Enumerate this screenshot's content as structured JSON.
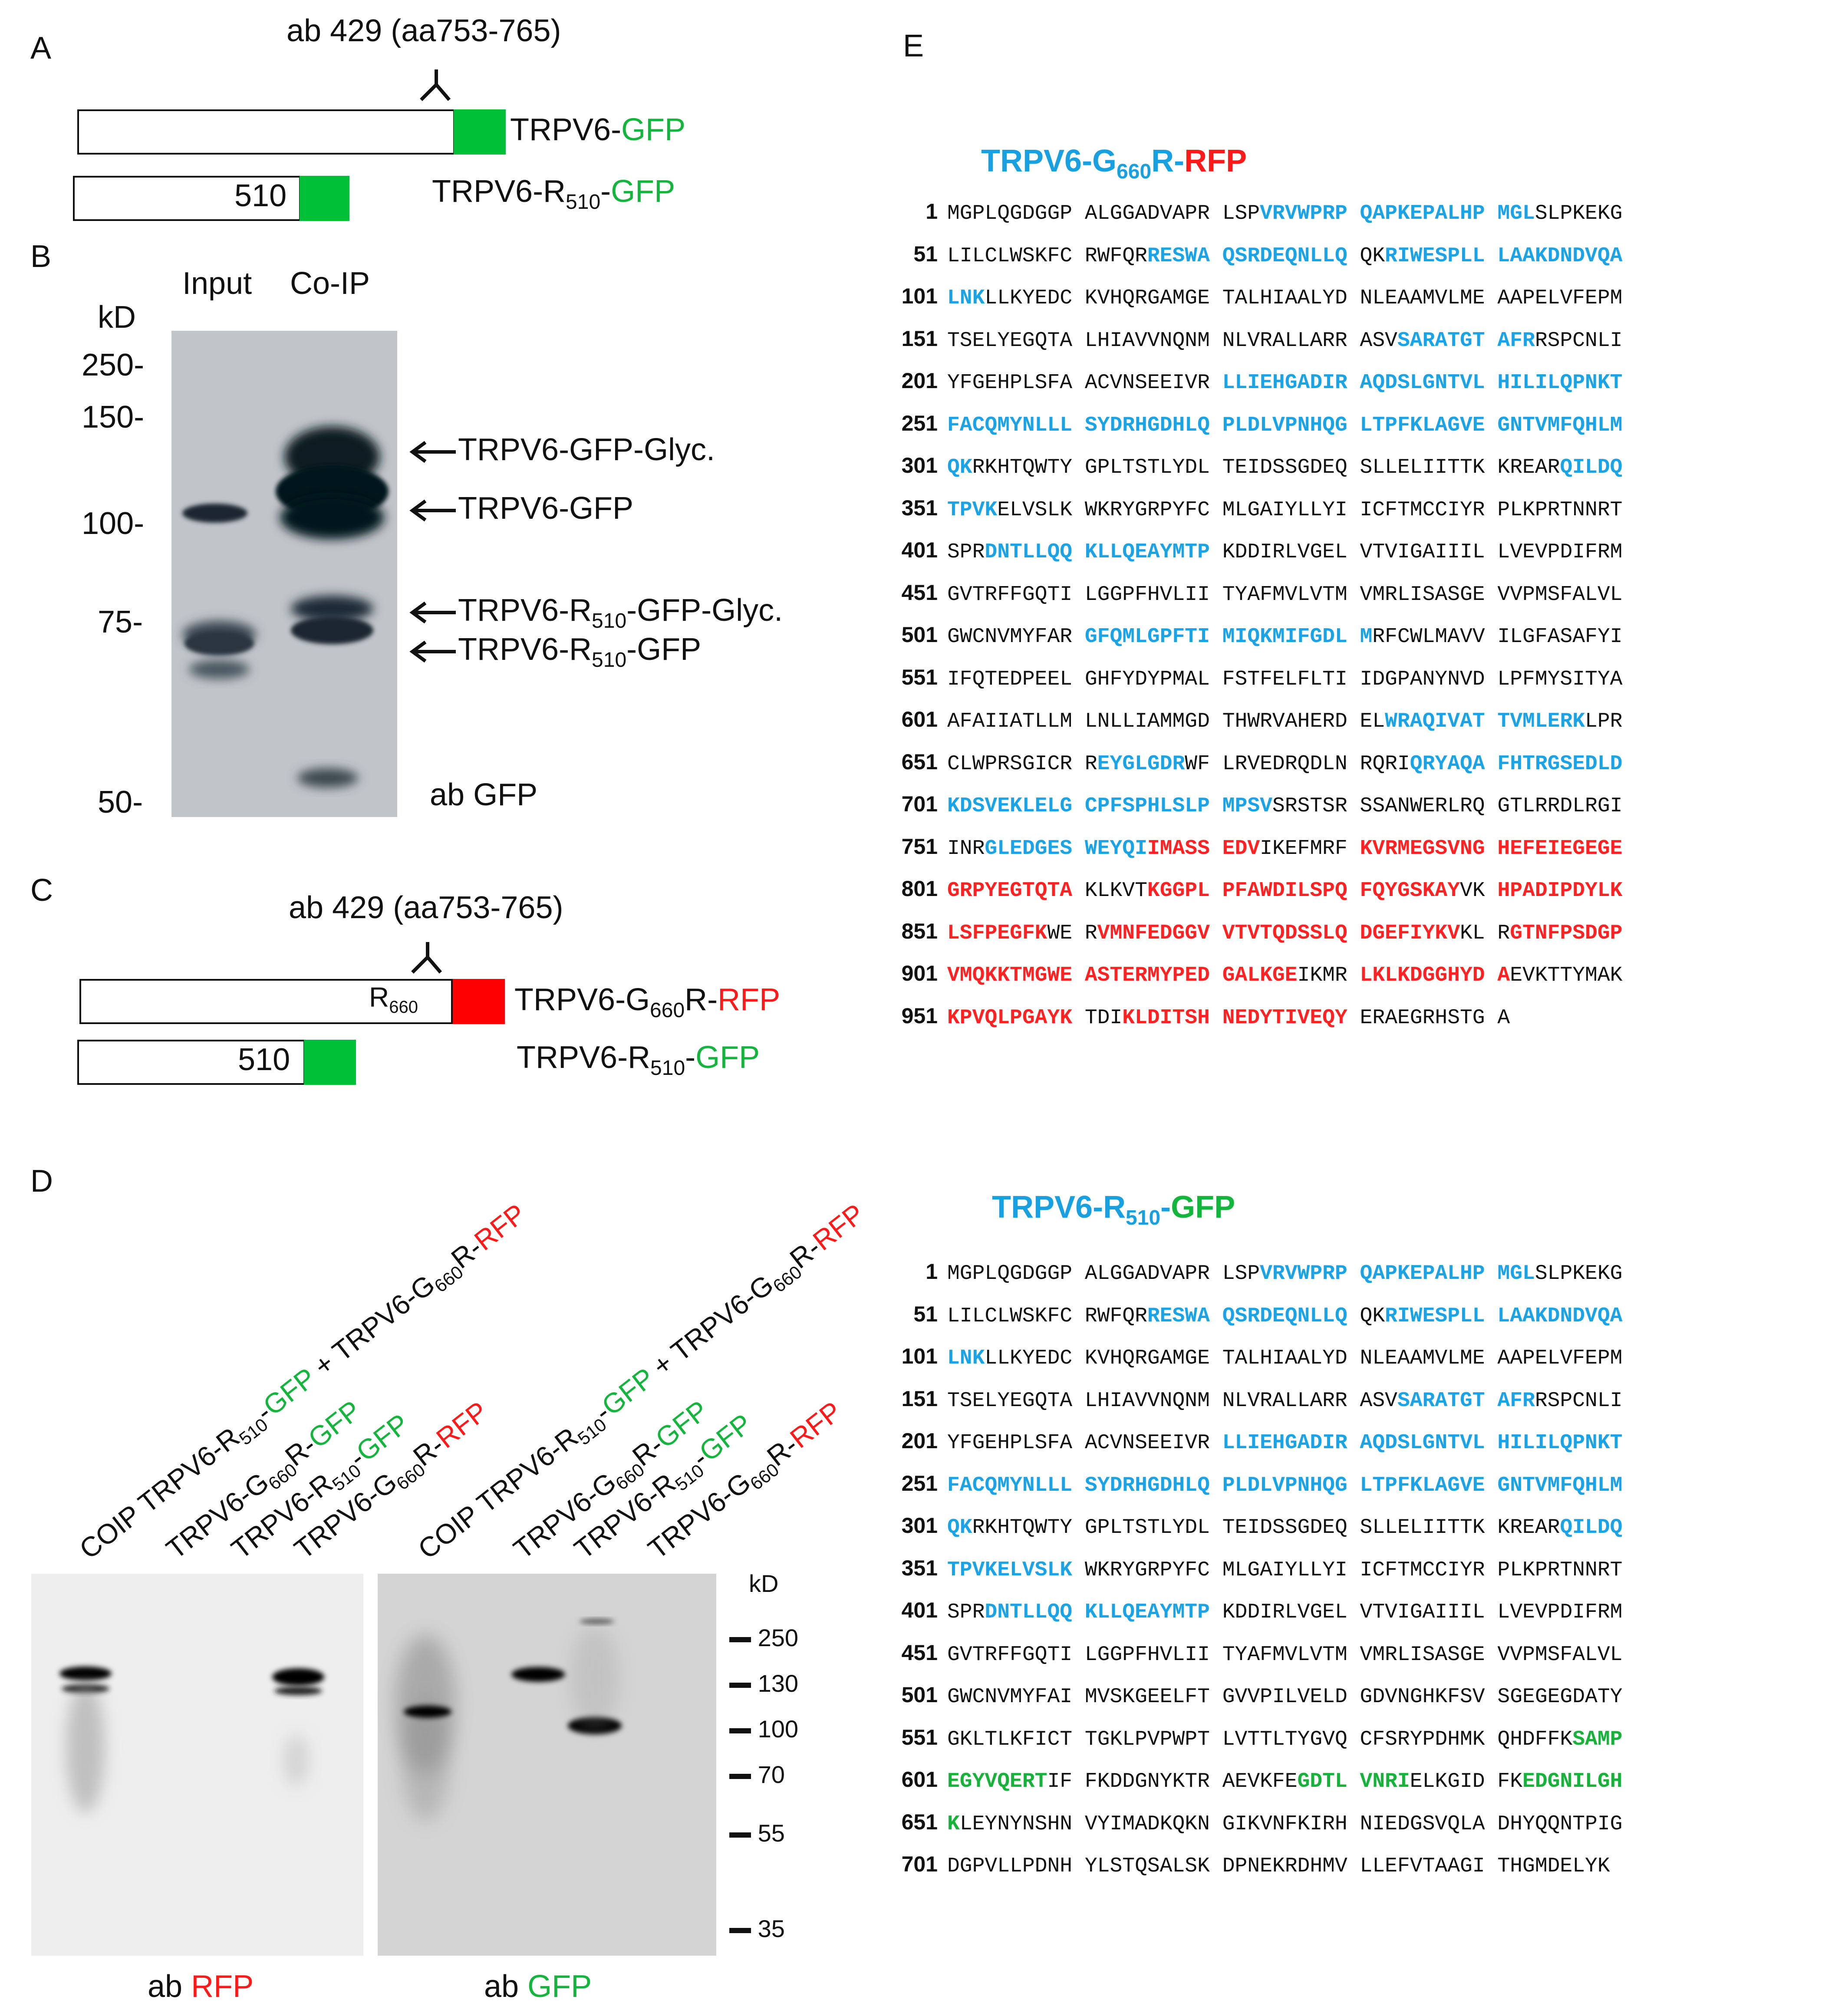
{
  "panelA": {
    "letter": "A",
    "antibody": "ab 429 (aa753-765)",
    "constructs": [
      {
        "name_prefix": "TRPV6-",
        "name_suffix": "GFP"
      },
      {
        "position": "510",
        "name_prefix": "TRPV6-R",
        "sub": "510",
        "name_dash": "-",
        "name_suffix": "GFP"
      }
    ]
  },
  "panelB": {
    "letter": "B",
    "kd_label": "kD",
    "lanes": [
      "Input",
      "Co-IP"
    ],
    "markers": [
      "250-",
      "150-",
      "100-",
      "75-",
      "50-"
    ],
    "bands": [
      {
        "label": "TRPV6-GFP-Glyc."
      },
      {
        "label": "TRPV6-GFP"
      },
      {
        "pre": "TRPV6-R",
        "sub": "510",
        "post": "-GFP-Glyc."
      },
      {
        "pre": "TRPV6-R",
        "sub": "510",
        "post": "-GFP"
      }
    ],
    "antibody": "ab GFP"
  },
  "panelC": {
    "letter": "C",
    "antibody": "ab 429 (aa753-765)",
    "r660": "R",
    "r660_sub": "660",
    "constructs": [
      {
        "pre": "TRPV6-G",
        "sub": "660",
        "mid": "R-",
        "tag": "RFP"
      },
      {
        "position": "510",
        "pre": "TRPV6-R",
        "sub": "510",
        "mid": "-",
        "tag": "GFP"
      }
    ]
  },
  "panelD": {
    "letter": "D",
    "lanes_left": [
      {
        "parts": [
          "COIP TRPV6-R",
          "510",
          "-",
          "GFP",
          " + TRPV6-G",
          "660",
          "R-",
          "RFP"
        ]
      },
      {
        "parts": [
          "TRPV6-G",
          "660",
          "R-",
          "GFP"
        ]
      },
      {
        "parts": [
          "TRPV6-R",
          "510",
          "-",
          "GFP"
        ]
      },
      {
        "parts": [
          "TRPV6-G",
          "660",
          "R-",
          "RFP"
        ]
      }
    ],
    "kd_label": "kD",
    "markers": [
      "250",
      "130",
      "100",
      "70",
      "55",
      "35"
    ],
    "ab_left_pre": "ab ",
    "ab_left_tag": "RFP",
    "ab_right_pre": "ab ",
    "ab_right_tag": "GFP"
  },
  "panelE": {
    "letter": "E",
    "title1": {
      "pre": "TRPV6-G",
      "sub": "660",
      "mid": "R-",
      "tag": "RFP"
    },
    "title2": {
      "pre": "TRPV6-R",
      "sub": "510",
      "mid": "-",
      "tag": "GFP"
    },
    "seq1": [
      {
        "n": "1",
        "s": "MGPLQGDGGP ALGGADVAPR LSPVRVWPRP QAPKEPALHP MGLSLPKEKG"
      },
      {
        "n": "51",
        "s": "LILCLWSKFC RWFQRRESWA QSRDEQNLLQ QKRIWESPLL LAAKDNDVQA"
      },
      {
        "n": "101",
        "s": "LNKLLKYEDC KVHQRGAMGE TALHIAALYD NLEAAMVLME AAPELVFEPM"
      },
      {
        "n": "151",
        "s": "TSELYEGQTA LHIAVVNQNM NLVRALLARR ASVSARATGT AFRRSPCNLI"
      },
      {
        "n": "201",
        "s": "YFGEHPLSFA ACVNSEEIVR LLIEHGADIR AQDSLGNTVL HILILQPNKT"
      },
      {
        "n": "251",
        "s": "FACQMYNLLL SYDRHGDHLQ PLDLVPNHQG LTPFKLAGVE GNTVMFQHLM"
      },
      {
        "n": "301",
        "s": "QKRKHTQWTY GPLTSTLYDL TEIDSSGDEQ SLLELIITTK KREARQILDQ"
      },
      {
        "n": "351",
        "s": "TPVKELVSLK WKRYGRPYFC MLGAIYLLYI ICFTMCCIYR PLKPRTNNRT"
      },
      {
        "n": "401",
        "s": "SPRDNTLLQQ KLLQEAYMTP KDDIRLVGEL VTVIGAIIIL LVEVPDIFRM"
      },
      {
        "n": "451",
        "s": "GVTRFFGQTI LGGPFHVLII TYAFMVLVTM VMRLISASGE VVPMSFALVL"
      },
      {
        "n": "501",
        "s": "GWCNVMYFAR GFQMLGPFTI MIQKMIFGDL MRFCWLMAVV ILGFASAFYI"
      },
      {
        "n": "551",
        "s": "IFQTEDPEEL GHFYDYPMAL FSTFELFLTI IDGPANYNVD LPFMYSITYA"
      },
      {
        "n": "601",
        "s": "AFAIIATLLM LNLLIAMMGD THWRVAHERD ELWRAQIVAT TVMLERKLPR"
      },
      {
        "n": "651",
        "s": "CLWPRSGICR REYGLGDRWF LRVEDRQDLN RQRIQRYAQA FHTRGSEDLD"
      },
      {
        "n": "701",
        "s": "KDSVEKLELG CPFSPHLSLP MPSVSRSTSR SSANWERLRQ GTLRRDLRGI"
      },
      {
        "n": "751",
        "s": "INRGLEDGES WEYQIIMASS EDVIKEFMRF KVRMEGSVNG HEFEIEGEGE"
      },
      {
        "n": "801",
        "s": "GRPYEGTQTA KLKVTKGGPL PFAWDILSPQ FQYGSKAYVK HPADIPDYLK"
      },
      {
        "n": "851",
        "s": "LSFPEGFKWE RVMNFEDGGV VTVTQDSSLQ DGEFIYKVKL RGTNFPSDGP"
      },
      {
        "n": "901",
        "s": "VMQKKTMGWE ASTERMYPED GALKGEIKMR LKLKDGGHYD AEVKTTYMAK"
      },
      {
        "n": "951",
        "s": "KPVQLPGAYK TDIKLDITSH NEDYTIVEQY ERAEGRHSTG A"
      }
    ],
    "seq2": [
      {
        "n": "1",
        "s": "MGPLQGDGGP ALGGADVAPR LSPVRVWPRP QAPKEPALHP MGLSLPKEKG"
      },
      {
        "n": "51",
        "s": "LILCLWSKFC RWFQRRESWA QSRDEQNLLQ QKRIWESPLL LAAKDNDVQA"
      },
      {
        "n": "101",
        "s": "LNKLLKYEDC KVHQRGAMGE TALHIAALYD NLEAAMVLME AAPELVFEPM"
      },
      {
        "n": "151",
        "s": "TSELYEGQTA LHIAVVNQNM NLVRALLARR ASVSARATGT AFRRSPCNLI"
      },
      {
        "n": "201",
        "s": "YFGEHPLSFA ACVNSEEIVR LLIEHGADIR AQDSLGNTVL HILILQPNKT"
      },
      {
        "n": "251",
        "s": "FACQMYNLLL SYDRHGDHLQ PLDLVPNHQG LTPFKLAGVE GNTVMFQHLM"
      },
      {
        "n": "301",
        "s": "QKRKHTQWTY GPLTSTLYDL TEIDSSGDEQ SLLELIITTK KREARQILDQ"
      },
      {
        "n": "351",
        "s": "TPVKELVSLK WKRYGRPYFC MLGAIYLLYI ICFTMCCIYR PLKPRTNNRT"
      },
      {
        "n": "401",
        "s": "SPRDNTLLQQ KLLQEAYMTP KDDIRLVGEL VTVIGAIIIL LVEVPDIFRM"
      },
      {
        "n": "451",
        "s": "GVTRFFGQTI LGGPFHVLII TYAFMVLVTM VMRLISASGE VVPMSFALVL"
      },
      {
        "n": "501",
        "s": "GWCNVMYFAI MVSKGEELFT GVVPILVELD GDVNGHKFSV SGEGEGDATY"
      },
      {
        "n": "551",
        "s": "GKLTLKFICT TGKLPVPWPT LVTTLTYGVQ CFSRYPDHMK QHDFFKSAMP"
      },
      {
        "n": "601",
        "s": "EGYVQERTIF FKDDGNYKTR AEVKFEGDTL VNRIELKGID FKEDGNILGH"
      },
      {
        "n": "651",
        "s": "KLEYNYNSHN VYIMADKQKN GIKVNFKIRH NIEDGSVQLA DHYQQNTPIG"
      },
      {
        "n": "701",
        "s": "DGPVLLPDNH YLSTQSALSK DPNEKRDHMV LLEFVTAAGI THGMDELYK"
      }
    ]
  },
  "colors": {
    "gfp": "#14b53c",
    "rfp": "#ff1a1a",
    "trpv6": "#18a0e0"
  }
}
